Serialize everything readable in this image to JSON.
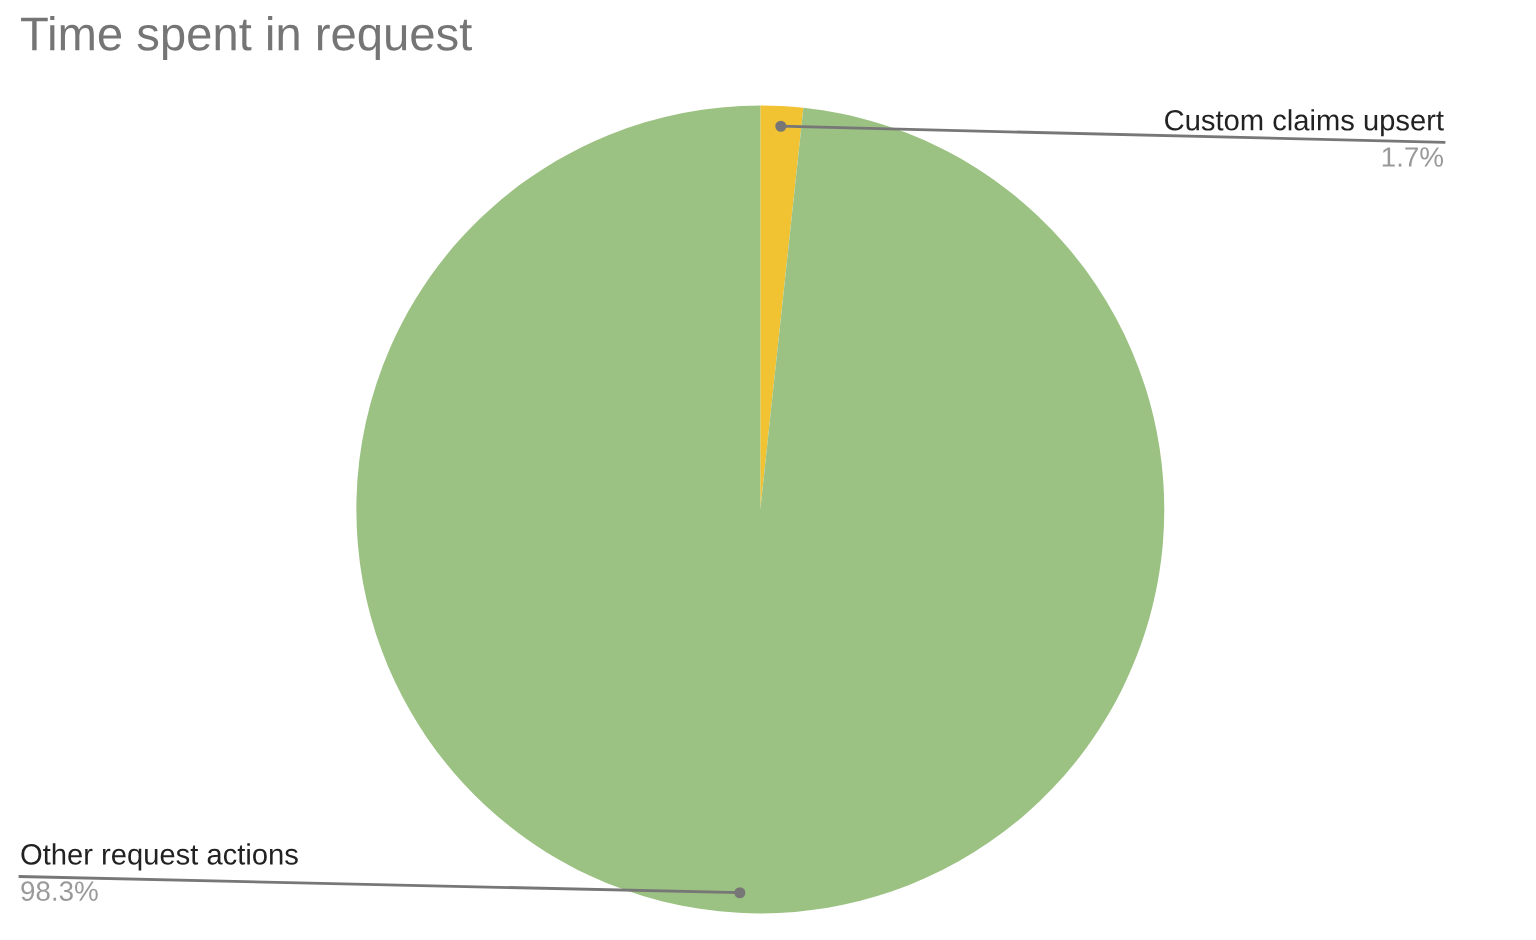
{
  "chart_data": {
    "type": "pie",
    "title": "Time spent in request",
    "categories": [
      "Custom claims upsert",
      "Other request actions"
    ],
    "values": [
      1.7,
      98.3
    ],
    "colors": [
      "#f1c232",
      "#9cc283"
    ],
    "value_labels": [
      "1.7%",
      "98.3%"
    ],
    "legend": false
  }
}
